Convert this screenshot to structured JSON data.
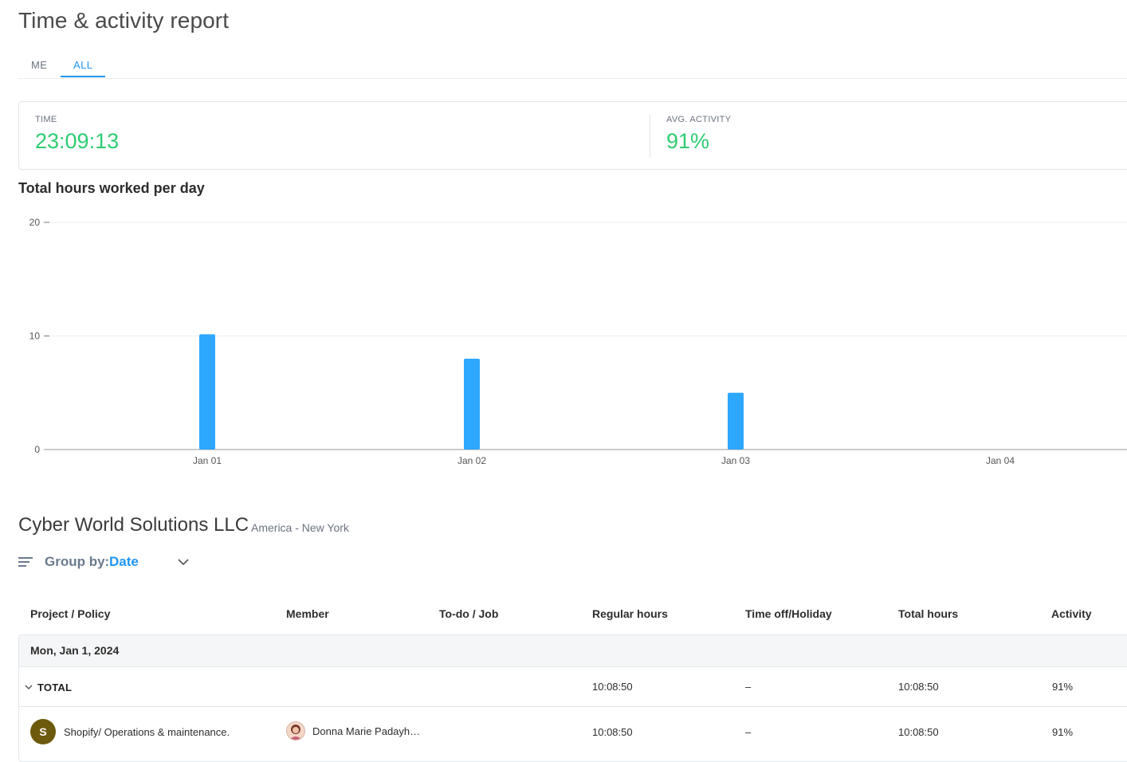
{
  "page": {
    "title": "Time & activity report"
  },
  "tabs": [
    {
      "label": "ME"
    },
    {
      "label": "ALL",
      "active": true
    }
  ],
  "summary": {
    "time": {
      "label": "TIME",
      "value": "23:09:13"
    },
    "activity": {
      "label": "AVG. ACTIVITY",
      "value": "91%"
    }
  },
  "colors": {
    "accent": "#2196f3",
    "positive": "#2ecc71",
    "bar": "#2ea7ff",
    "project_avatar": "#6e5a0d"
  },
  "chart_data": {
    "type": "bar",
    "title": "Total hours worked per day",
    "categories": [
      "Jan 01",
      "Jan 02",
      "Jan 03",
      "Jan 04"
    ],
    "values": [
      10.15,
      8.0,
      5.0,
      0
    ],
    "yticks": [
      "0",
      "10",
      "20"
    ],
    "ylim": [
      0,
      20
    ],
    "grid": true
  },
  "org": {
    "name": "Cyber World Solutions LLC",
    "timezone": "America - New York"
  },
  "groupby": {
    "label": "Group by:",
    "value": "Date",
    "icon": "lines-icon"
  },
  "table": {
    "headers": [
      "Project / Policy",
      "Member",
      "To-do / Job",
      "Regular hours",
      "Time off/Holiday",
      "Total hours",
      "Activity"
    ],
    "date_label": "Mon, Jan 1, 2024",
    "total": {
      "label": "TOTAL",
      "regular": "10:08:50",
      "timeoff": "–",
      "total": "10:08:50",
      "activity": "91%"
    },
    "row": {
      "avatar": "S",
      "project": "Shopify/ Operations & maintenance.",
      "member": "Donna Marie Padayh…",
      "regular": "10:08:50",
      "timeoff": "–",
      "total": "10:08:50",
      "activity": "91%"
    }
  }
}
